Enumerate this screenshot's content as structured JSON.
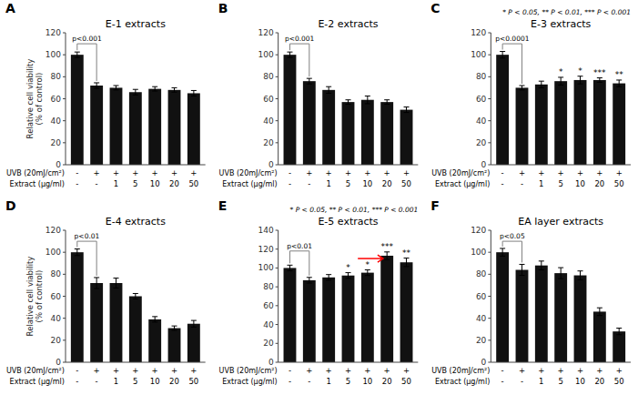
{
  "chart_data": [
    {
      "type": "bar",
      "title": "E-1 extracts",
      "panel_label": "A",
      "ylabel": "Relative cell viability\n(% of control)",
      "category_rows": [
        {
          "label": "UVB (20mJ/cm²)",
          "categories": [
            "-",
            "+",
            "+",
            "+",
            "+",
            "+",
            "+"
          ]
        },
        {
          "label": "Extract (μg/ml)",
          "categories": [
            "-",
            "-",
            "1",
            "5",
            "10",
            "20",
            "50"
          ]
        }
      ],
      "values": [
        100,
        72,
        70,
        66,
        69,
        68,
        65
      ],
      "errors": [
        2.5,
        2.5,
        2.0,
        2.5,
        2.0,
        2.0,
        2.5
      ],
      "color": "#111111",
      "ylim": [
        0,
        120
      ],
      "yticks": [
        0,
        20,
        40,
        60,
        80,
        100,
        120
      ],
      "grid": false,
      "significance_bracket": {
        "x1": 0,
        "x2": 1,
        "y": 110,
        "text": "p<0.001"
      }
    },
    {
      "type": "bar",
      "title": "E-2 extracts",
      "panel_label": "B",
      "category_rows": [
        {
          "label": "UVB (20mJ/cm²)",
          "categories": [
            "-",
            "+",
            "+",
            "+",
            "+",
            "+",
            "+"
          ]
        },
        {
          "label": "Extract (μg/ml)",
          "categories": [
            "-",
            "-",
            "1",
            "5",
            "10",
            "20",
            "50"
          ]
        }
      ],
      "values": [
        100,
        76,
        68,
        57,
        59,
        57,
        50
      ],
      "errors": [
        2.5,
        2.5,
        3.0,
        2.0,
        3.5,
        2.0,
        2.5
      ],
      "color": "#111111",
      "ylim": [
        0,
        120
      ],
      "yticks": [
        0,
        20,
        40,
        60,
        80,
        100,
        120
      ],
      "grid": false,
      "significance_bracket": {
        "x1": 0,
        "x2": 1,
        "y": 110,
        "text": "p<0.001"
      }
    },
    {
      "type": "bar",
      "title": "E-3 extracts",
      "panel_label": "C",
      "annotation": "* P < 0.05,  ** P < 0.01,  *** P < 0.001",
      "category_rows": [
        {
          "label": "UVB (20mJ/cm²)",
          "categories": [
            "-",
            "+",
            "+",
            "+",
            "+",
            "+",
            "+"
          ]
        },
        {
          "label": "Extract (μg/ml)",
          "categories": [
            "-",
            "-",
            "1",
            "5",
            "10",
            "20",
            "50"
          ]
        }
      ],
      "values": [
        100,
        70,
        73,
        76,
        77,
        77,
        74
      ],
      "errors": [
        3.0,
        2.0,
        3.0,
        3.5,
        3.5,
        2.0,
        3.0
      ],
      "color": "#111111",
      "star_labels": [
        null,
        null,
        null,
        "*",
        "*",
        "***",
        "**"
      ],
      "ylim": [
        0,
        120
      ],
      "yticks": [
        0,
        20,
        40,
        60,
        80,
        100,
        120
      ],
      "grid": false,
      "significance_bracket": {
        "x1": 0,
        "x2": 1,
        "y": 110,
        "text": "p<0.0001"
      }
    },
    {
      "type": "bar",
      "title": "E-4 extracts",
      "panel_label": "D",
      "ylabel": "Relative cell viability\n(% of control)",
      "category_rows": [
        {
          "label": "UVB (20mJ/cm²)",
          "categories": [
            "-",
            "+",
            "+",
            "+",
            "+",
            "+",
            "+"
          ]
        },
        {
          "label": "Extract (μg/ml)",
          "categories": [
            "-",
            "-",
            "1",
            "5",
            "10",
            "20",
            "50"
          ]
        }
      ],
      "values": [
        100,
        72,
        72,
        60,
        39,
        31,
        35
      ],
      "errors": [
        3.0,
        5.0,
        4.5,
        2.5,
        2.5,
        2.0,
        3.0
      ],
      "color": "#111111",
      "ylim": [
        0,
        120
      ],
      "yticks": [
        0,
        20,
        40,
        60,
        80,
        100,
        120
      ],
      "grid": false,
      "significance_bracket": {
        "x1": 0,
        "x2": 1,
        "y": 110,
        "text": "p<0.01"
      }
    },
    {
      "type": "bar",
      "title": "E-5 extracts",
      "panel_label": "E",
      "annotation": "* P < 0.05,  ** P < 0.01,  *** P < 0.001",
      "category_rows": [
        {
          "label": "UVB (20mJ/cm²)",
          "categories": [
            "-",
            "+",
            "+",
            "+",
            "+",
            "+",
            "+"
          ]
        },
        {
          "label": "Extract (μg/ml)",
          "categories": [
            "-",
            "-",
            "1",
            "5",
            "10",
            "20",
            "50"
          ]
        }
      ],
      "values": [
        100,
        87,
        90,
        92,
        95,
        113,
        106
      ],
      "errors": [
        3.0,
        3.0,
        3.0,
        3.0,
        3.0,
        4.0,
        4.5
      ],
      "color": "#111111",
      "star_labels": [
        null,
        null,
        null,
        "*",
        "*",
        "***",
        "**"
      ],
      "ylim": [
        0,
        140
      ],
      "yticks": [
        0,
        20,
        40,
        60,
        80,
        100,
        120,
        140
      ],
      "grid": false,
      "significance_bracket": {
        "x1": 0,
        "x2": 1,
        "y": 118,
        "text": "p<0.01"
      },
      "arrow": {
        "x_start": 3.5,
        "x_end": 4.8,
        "y": 110,
        "color": "red"
      }
    },
    {
      "type": "bar",
      "title": "EA layer extracts",
      "panel_label": "F",
      "category_rows": [
        {
          "label": "UVB (20mJ/cm²)",
          "categories": [
            "-",
            "+",
            "+",
            "+",
            "+",
            "+",
            "+"
          ]
        },
        {
          "label": "Extract (μg/ml)",
          "categories": [
            "-",
            "-",
            "1",
            "5",
            "10",
            "20",
            "50"
          ]
        }
      ],
      "values": [
        100,
        84,
        88,
        81,
        79,
        46,
        28
      ],
      "errors": [
        3.5,
        5.0,
        4.0,
        5.0,
        4.0,
        3.5,
        3.0
      ],
      "color": "#111111",
      "ylim": [
        0,
        120
      ],
      "yticks": [
        0,
        20,
        40,
        60,
        80,
        100,
        120
      ],
      "grid": false,
      "significance_bracket": {
        "x1": 0,
        "x2": 1,
        "y": 110,
        "text": "p<0.05"
      }
    }
  ]
}
